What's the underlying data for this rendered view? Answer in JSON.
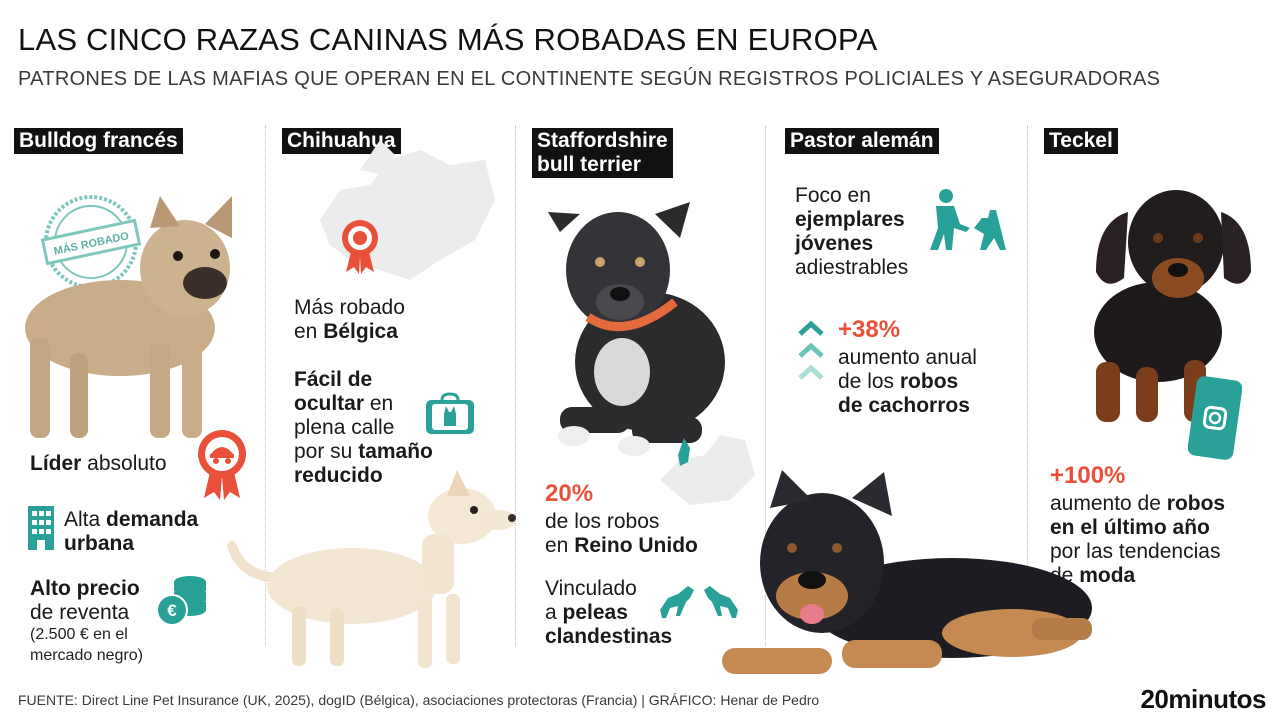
{
  "header": {
    "title": "LAS CINCO RAZAS CANINAS MÁS ROBADAS EN EUROPA",
    "subtitle": "PATRONES DE LAS MAFIAS QUE OPERAN EN EL CONTINENTE SEGÚN REGISTROS POLICIALES Y ASEGURADORAS"
  },
  "columns": {
    "bulldog": {
      "name": "Bulldog francés",
      "stamp": "MÁS ROBADO",
      "lider_bold": "Líder",
      "lider_rest": " absoluto",
      "demanda_a": "Alta ",
      "demanda_b": "demanda",
      "demanda_c": "urbana",
      "precio_a": "Alto precio",
      "precio_b": "de reventa",
      "precio_c": "(2.500 € en el",
      "precio_d": "mercado negro)"
    },
    "chihuahua": {
      "name": "Chihuahua",
      "robado_a": "Más robado",
      "robado_b": "en ",
      "robado_c": "Bélgica",
      "facil_a": "Fácil de",
      "facil_b": "ocultar",
      "facil_c": " en",
      "facil_d": "plena calle",
      "facil_e": "por su ",
      "facil_f": "tamaño",
      "facil_g": "reducido"
    },
    "staffordshire": {
      "name_a": "Staffordshire",
      "name_b": "bull terrier",
      "pct": "20%",
      "robos_a": "de los robos",
      "robos_b": "en ",
      "robos_c": "Reino Unido",
      "vinc_a": "Vinculado",
      "vinc_b": "a ",
      "vinc_c": "peleas",
      "vinc_d": "clandestinas"
    },
    "pastor": {
      "name": "Pastor alemán",
      "foco_a": "Foco en",
      "foco_b": "ejemplares",
      "foco_c": "jóvenes",
      "foco_d": "adiestrables",
      "pct": "+38%",
      "aum_a": "aumento anual",
      "aum_b": "de los ",
      "aum_c": "robos",
      "aum_d": "de cachorros"
    },
    "teckel": {
      "name": "Teckel",
      "pct": "+100%",
      "aum_a": "aumento de ",
      "aum_b": "robos",
      "aum_c": "en el último año",
      "aum_d": "por las tendencias",
      "aum_e": "de ",
      "aum_f": "moda"
    }
  },
  "footer": {
    "source": "FUENTE: Direct Line Pet Insurance (UK, 2025), dogID (Bélgica), asociaciones protectoras (Francia)  |  GRÁFICO: Henar de Pedro",
    "brand": "20minutos"
  },
  "colors": {
    "accent": "#e8503a",
    "teal": "#2aa198",
    "label_bg": "#111111"
  },
  "icons": [
    "medal-icon",
    "building-icon",
    "coins-icon",
    "bag-icon",
    "trainer-icon",
    "arrows-up-icon",
    "fighting-dogs-icon",
    "phone-icon",
    "stamp-icon"
  ]
}
